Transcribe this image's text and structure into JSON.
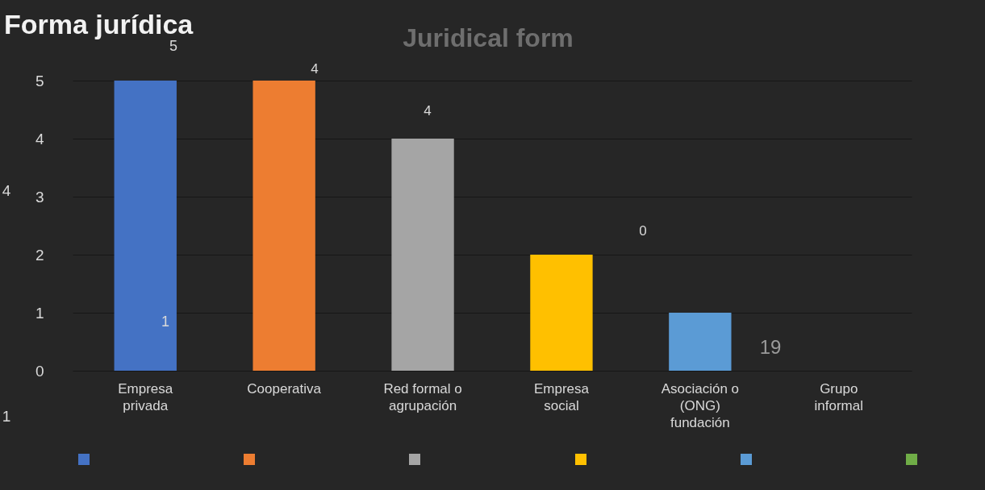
{
  "chart_data": {
    "type": "bar",
    "title": "Forma jurídica",
    "subtitle": "Juridical form",
    "categories": [
      "Empresa privada",
      "Cooperativa",
      "Red formal o agrupación",
      "Empresa social",
      "Asociación o (ONG) fundación",
      "Grupo informal"
    ],
    "values": [
      5,
      5,
      4,
      2,
      1,
      0
    ],
    "colors": [
      "#4472c4",
      "#ed7d31",
      "#a5a5a5",
      "#ffc000",
      "#5b9bd5",
      "#70ad47"
    ],
    "ylim": [
      0,
      5
    ],
    "yticks": [
      0,
      1,
      2,
      3,
      4,
      5
    ],
    "grid": true,
    "annotations": [
      "5",
      "4",
      "4",
      "4",
      "1",
      "0",
      "19",
      "1"
    ]
  }
}
